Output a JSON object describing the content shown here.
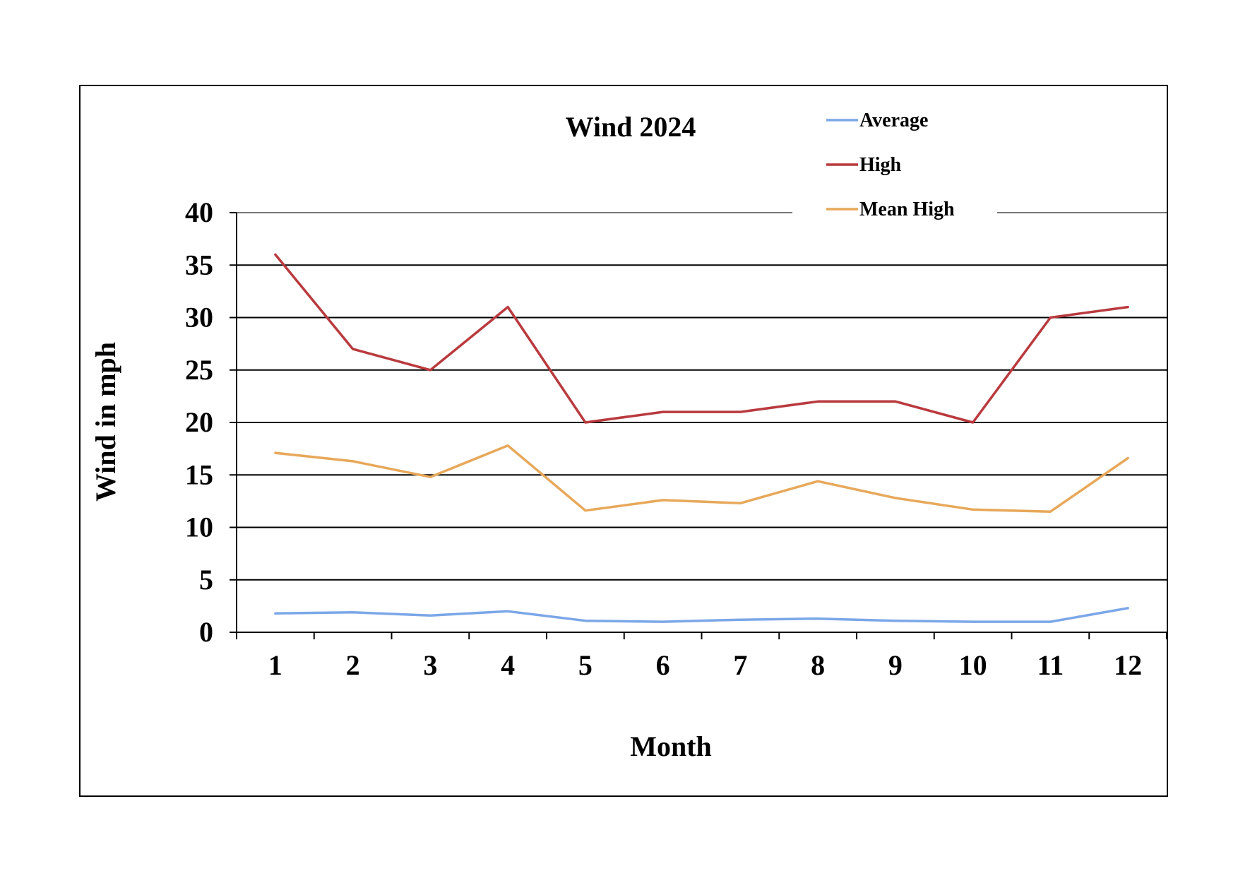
{
  "chart_data": {
    "type": "line",
    "title": "Wind 2024",
    "xlabel": "Month",
    "ylabel": "Wind in mph",
    "categories": [
      "1",
      "2",
      "3",
      "4",
      "5",
      "6",
      "7",
      "8",
      "9",
      "10",
      "11",
      "12"
    ],
    "ylim": [
      0,
      40
    ],
    "yticks": [
      "0",
      "5",
      "10",
      "15",
      "20",
      "25",
      "30",
      "35",
      "40"
    ],
    "grid": true,
    "legend_position": "top-right",
    "series": [
      {
        "name": "Average",
        "color": "#7ba7e8",
        "values": [
          1.8,
          1.9,
          1.6,
          2.0,
          1.1,
          1.0,
          1.2,
          1.3,
          1.1,
          1.0,
          1.0,
          2.3
        ]
      },
      {
        "name": "High",
        "color": "#b93a3e",
        "values": [
          36,
          27,
          25,
          31,
          20,
          21,
          21,
          22,
          22,
          20,
          30,
          31
        ]
      },
      {
        "name": "Mean High",
        "color": "#e7a85a",
        "values": [
          17.1,
          16.3,
          14.8,
          17.8,
          11.6,
          12.6,
          12.3,
          14.4,
          12.8,
          11.7,
          11.5,
          16.6
        ]
      }
    ]
  }
}
